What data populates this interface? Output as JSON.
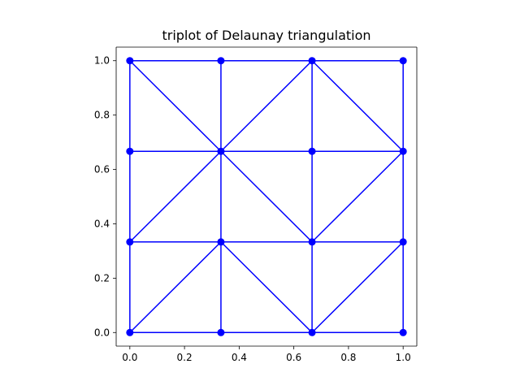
{
  "chart_data": {
    "type": "line",
    "title": "triplot of Delaunay triangulation",
    "xlabel": "",
    "ylabel": "",
    "xlim": [
      -0.05,
      1.05
    ],
    "ylim": [
      -0.05,
      1.05
    ],
    "grid": false,
    "x_ticks": [
      "0.0",
      "0.2",
      "0.4",
      "0.6",
      "0.8",
      "1.0"
    ],
    "y_ticks": [
      "0.0",
      "0.2",
      "0.4",
      "0.6",
      "0.8",
      "1.0"
    ],
    "line_color": "#0000ff",
    "marker": "circle",
    "points": [
      [
        0,
        0
      ],
      [
        0.3333,
        0
      ],
      [
        0.6667,
        0
      ],
      [
        1,
        0
      ],
      [
        0,
        0.3333
      ],
      [
        0.3333,
        0.3333
      ],
      [
        0.6667,
        0.3333
      ],
      [
        1,
        0.3333
      ],
      [
        0,
        0.6667
      ],
      [
        0.3333,
        0.6667
      ],
      [
        0.6667,
        0.6667
      ],
      [
        1,
        0.6667
      ],
      [
        0,
        1
      ],
      [
        0.3333,
        1
      ],
      [
        0.6667,
        1
      ],
      [
        1,
        1
      ]
    ],
    "edges": [
      [
        0,
        1
      ],
      [
        1,
        2
      ],
      [
        2,
        3
      ],
      [
        4,
        5
      ],
      [
        5,
        6
      ],
      [
        6,
        7
      ],
      [
        8,
        9
      ],
      [
        9,
        10
      ],
      [
        10,
        11
      ],
      [
        12,
        13
      ],
      [
        13,
        14
      ],
      [
        14,
        15
      ],
      [
        0,
        4
      ],
      [
        4,
        8
      ],
      [
        8,
        12
      ],
      [
        1,
        5
      ],
      [
        5,
        9
      ],
      [
        9,
        13
      ],
      [
        2,
        6
      ],
      [
        6,
        10
      ],
      [
        10,
        14
      ],
      [
        3,
        7
      ],
      [
        7,
        11
      ],
      [
        11,
        15
      ],
      [
        0,
        5
      ],
      [
        5,
        2
      ],
      [
        2,
        7
      ],
      [
        4,
        9
      ],
      [
        9,
        6
      ],
      [
        6,
        11
      ],
      [
        12,
        9
      ],
      [
        9,
        14
      ],
      [
        14,
        11
      ]
    ]
  }
}
